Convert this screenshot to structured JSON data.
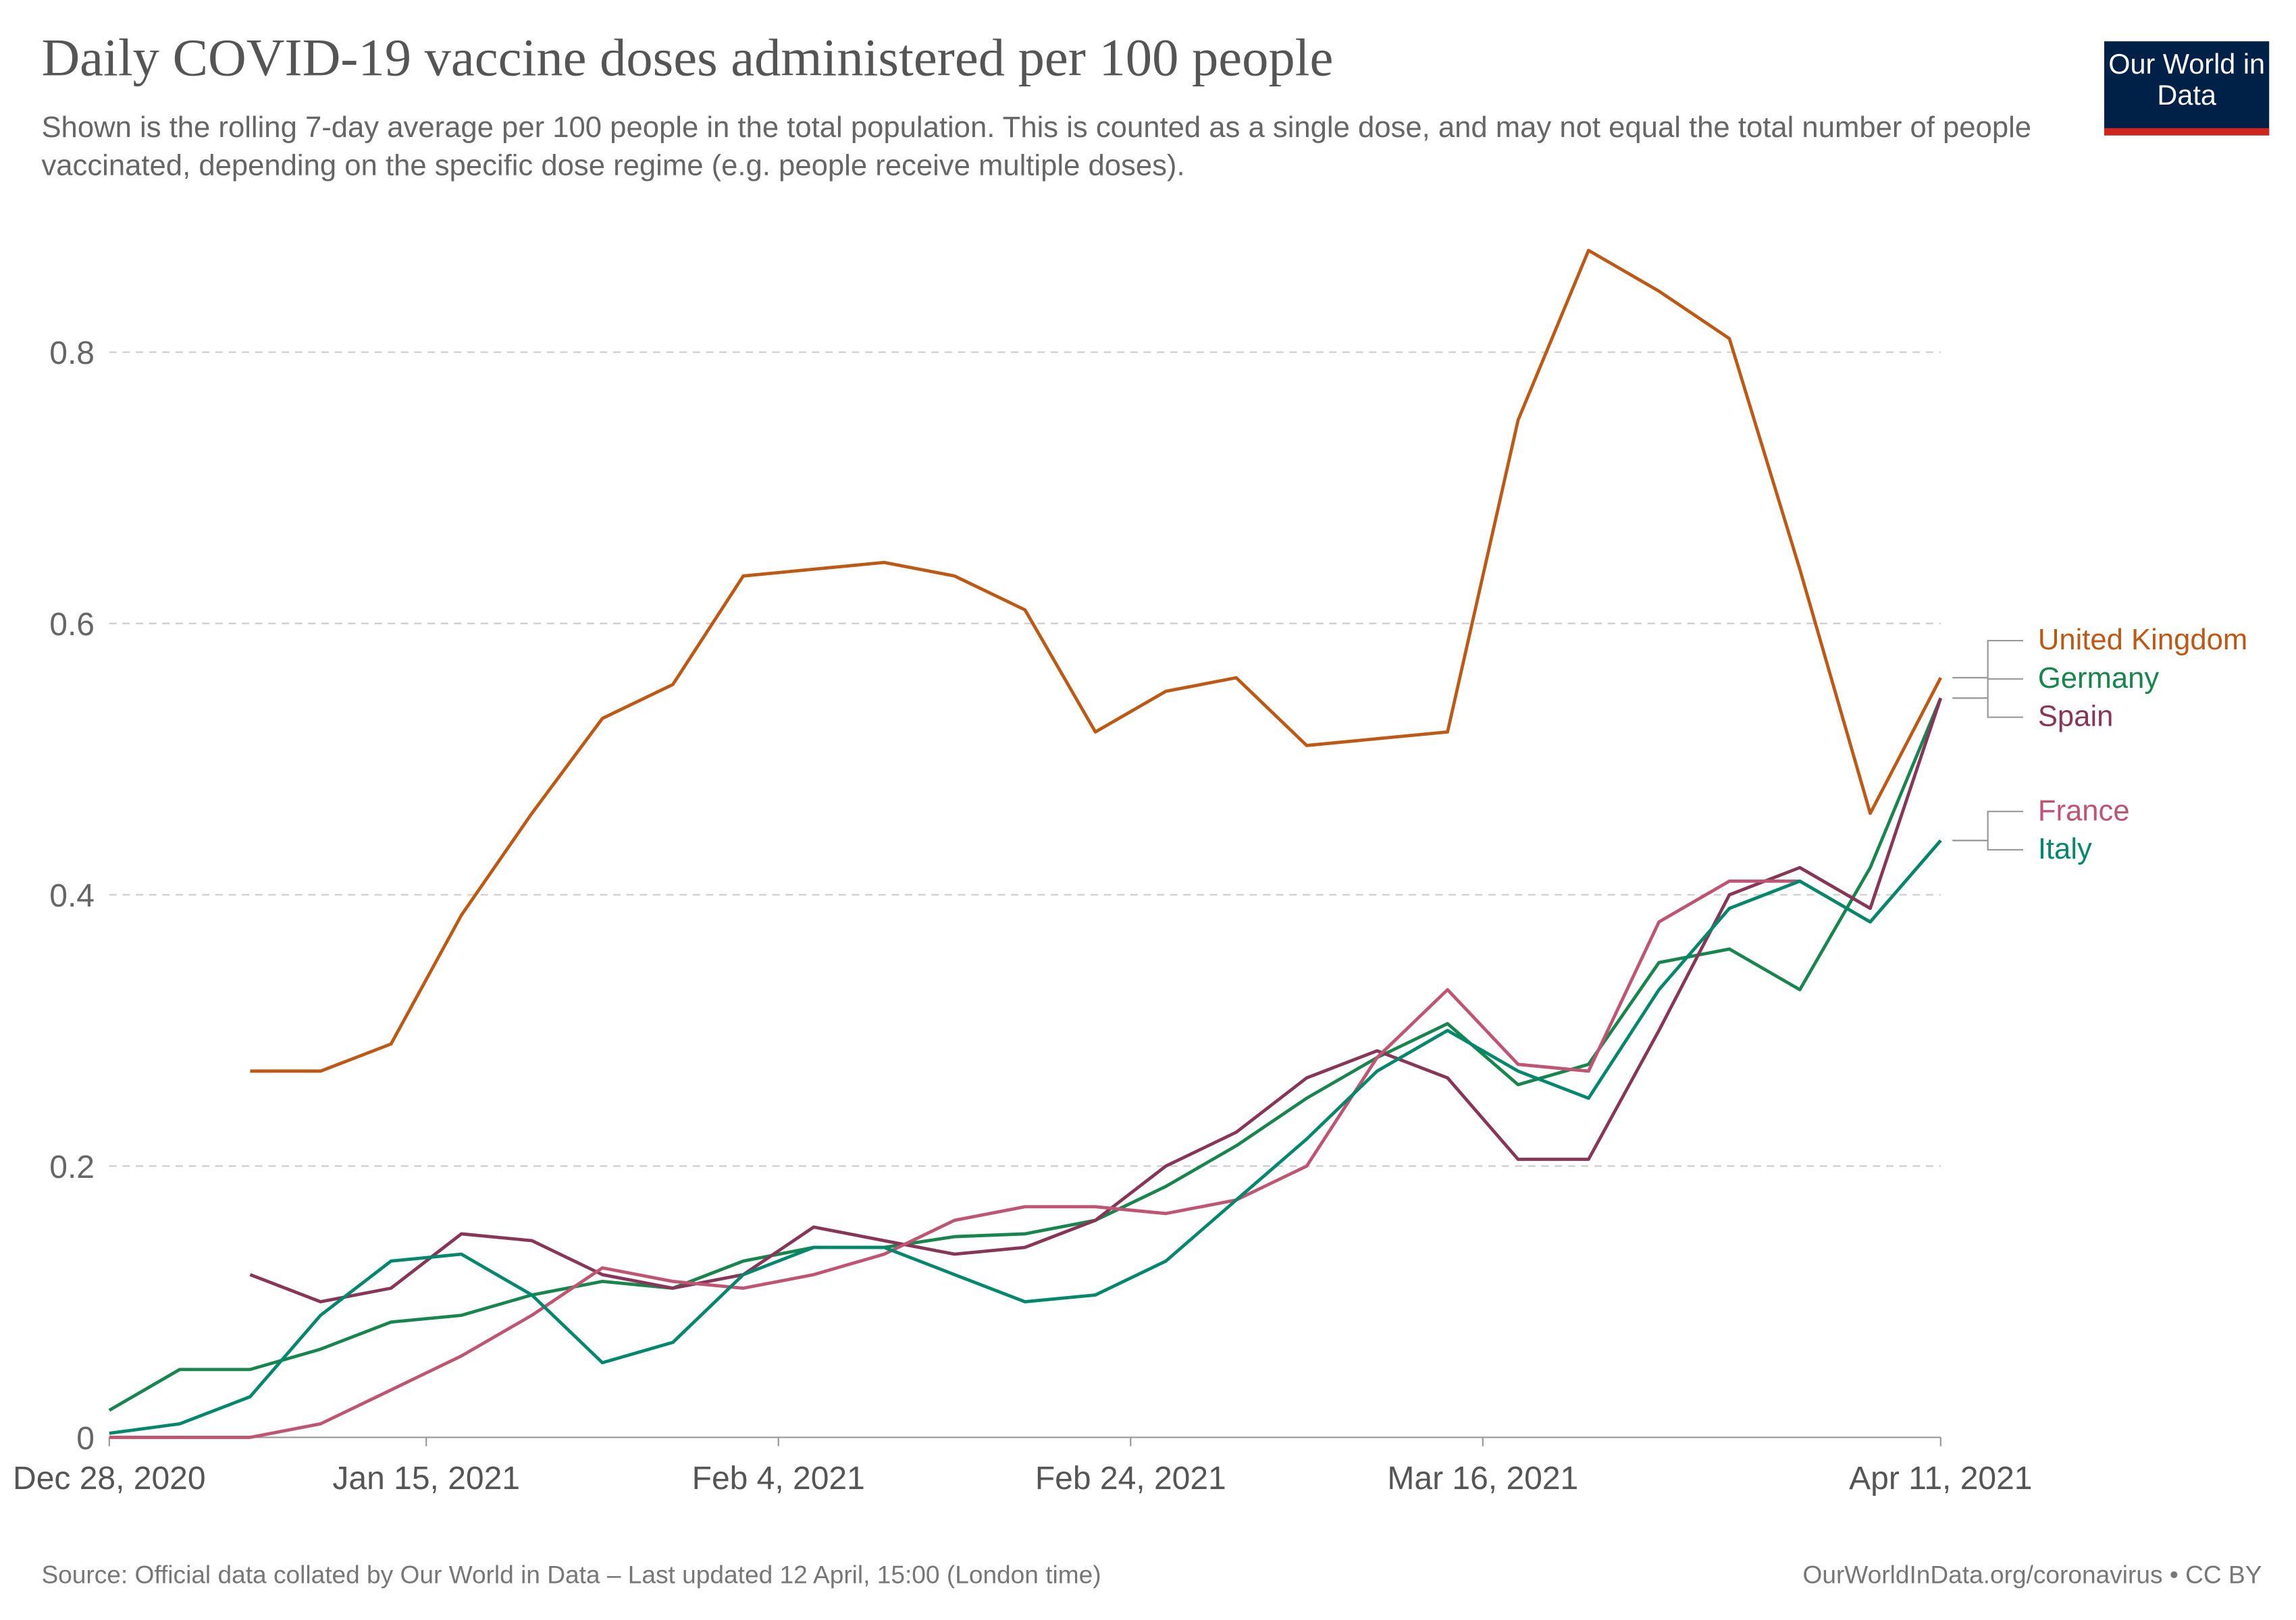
{
  "chart_data": {
    "type": "line",
    "title": "Daily COVID-19 vaccine doses administered per 100 people",
    "subtitle": "Shown is the rolling 7-day average per 100 people in the total population. This is counted as a single dose, and may not equal the total number of people vaccinated, depending on the specific dose regime (e.g. people receive multiple doses).",
    "logo": "Our World in Data",
    "source": "Source: Official data collated by Our World in Data – Last updated 12 April, 15:00 (London time)",
    "license": "OurWorldInData.org/coronavirus • CC BY",
    "x": [
      "2020-12-28",
      "2021-01-01",
      "2021-01-05",
      "2021-01-09",
      "2021-01-13",
      "2021-01-17",
      "2021-01-21",
      "2021-01-25",
      "2021-01-29",
      "2021-02-02",
      "2021-02-06",
      "2021-02-10",
      "2021-02-14",
      "2021-02-18",
      "2021-02-22",
      "2021-02-26",
      "2021-03-02",
      "2021-03-06",
      "2021-03-10",
      "2021-03-14",
      "2021-03-18",
      "2021-03-22",
      "2021-03-26",
      "2021-03-30",
      "2021-04-03",
      "2021-04-07",
      "2021-04-11"
    ],
    "xlim": [
      "2020-12-28",
      "2021-04-11"
    ],
    "xticks": [
      {
        "value": "2020-12-28",
        "label": "Dec 28, 2020"
      },
      {
        "value": "2021-01-15",
        "label": "Jan 15, 2021"
      },
      {
        "value": "2021-02-04",
        "label": "Feb 4, 2021"
      },
      {
        "value": "2021-02-24",
        "label": "Feb 24, 2021"
      },
      {
        "value": "2021-03-16",
        "label": "Mar 16, 2021"
      },
      {
        "value": "2021-04-11",
        "label": "Apr 11, 2021"
      }
    ],
    "ylim": [
      0,
      0.9
    ],
    "yticks": [
      0,
      0.2,
      0.4,
      0.6,
      0.8
    ],
    "grid": true,
    "series": [
      {
        "name": "United Kingdom",
        "color": "#be5915",
        "values": [
          null,
          null,
          0.27,
          0.27,
          0.29,
          0.385,
          0.46,
          0.53,
          0.555,
          0.635,
          0.64,
          0.645,
          0.635,
          0.61,
          0.52,
          0.55,
          0.56,
          0.51,
          0.515,
          0.52,
          0.75,
          0.875,
          0.845,
          0.81,
          0.64,
          0.46,
          0.56
        ]
      },
      {
        "name": "Germany",
        "color": "#18854f",
        "values": [
          0.02,
          0.05,
          0.05,
          0.065,
          0.085,
          0.09,
          0.105,
          0.115,
          0.11,
          0.13,
          0.14,
          0.14,
          0.148,
          0.15,
          0.16,
          0.185,
          0.215,
          0.25,
          0.28,
          0.305,
          0.26,
          0.275,
          0.35,
          0.36,
          0.33,
          0.42,
          0.545
        ]
      },
      {
        "name": "Spain",
        "color": "#883657",
        "values": [
          null,
          null,
          0.12,
          0.1,
          0.11,
          0.15,
          0.145,
          0.12,
          0.11,
          0.12,
          0.155,
          0.145,
          0.135,
          0.14,
          0.16,
          0.2,
          0.225,
          0.265,
          0.285,
          0.265,
          0.205,
          0.205,
          0.3,
          0.4,
          0.42,
          0.39,
          0.545
        ]
      },
      {
        "name": "France",
        "color": "#c05473",
        "values": [
          0,
          0,
          0,
          0.01,
          0.035,
          0.06,
          0.09,
          0.125,
          0.115,
          0.11,
          0.12,
          0.135,
          0.16,
          0.17,
          0.17,
          0.165,
          0.175,
          0.2,
          0.28,
          0.33,
          0.275,
          0.27,
          0.38,
          0.41,
          0.41,
          0.38,
          0.44
        ]
      },
      {
        "name": "Italy",
        "color": "#00876c",
        "values": [
          0.003,
          0.01,
          0.03,
          0.09,
          0.13,
          0.135,
          0.105,
          0.055,
          0.07,
          0.12,
          0.14,
          0.14,
          0.12,
          0.1,
          0.105,
          0.13,
          0.175,
          0.22,
          0.27,
          0.3,
          0.27,
          0.25,
          0.33,
          0.39,
          0.41,
          0.38,
          0.44
        ]
      }
    ]
  }
}
